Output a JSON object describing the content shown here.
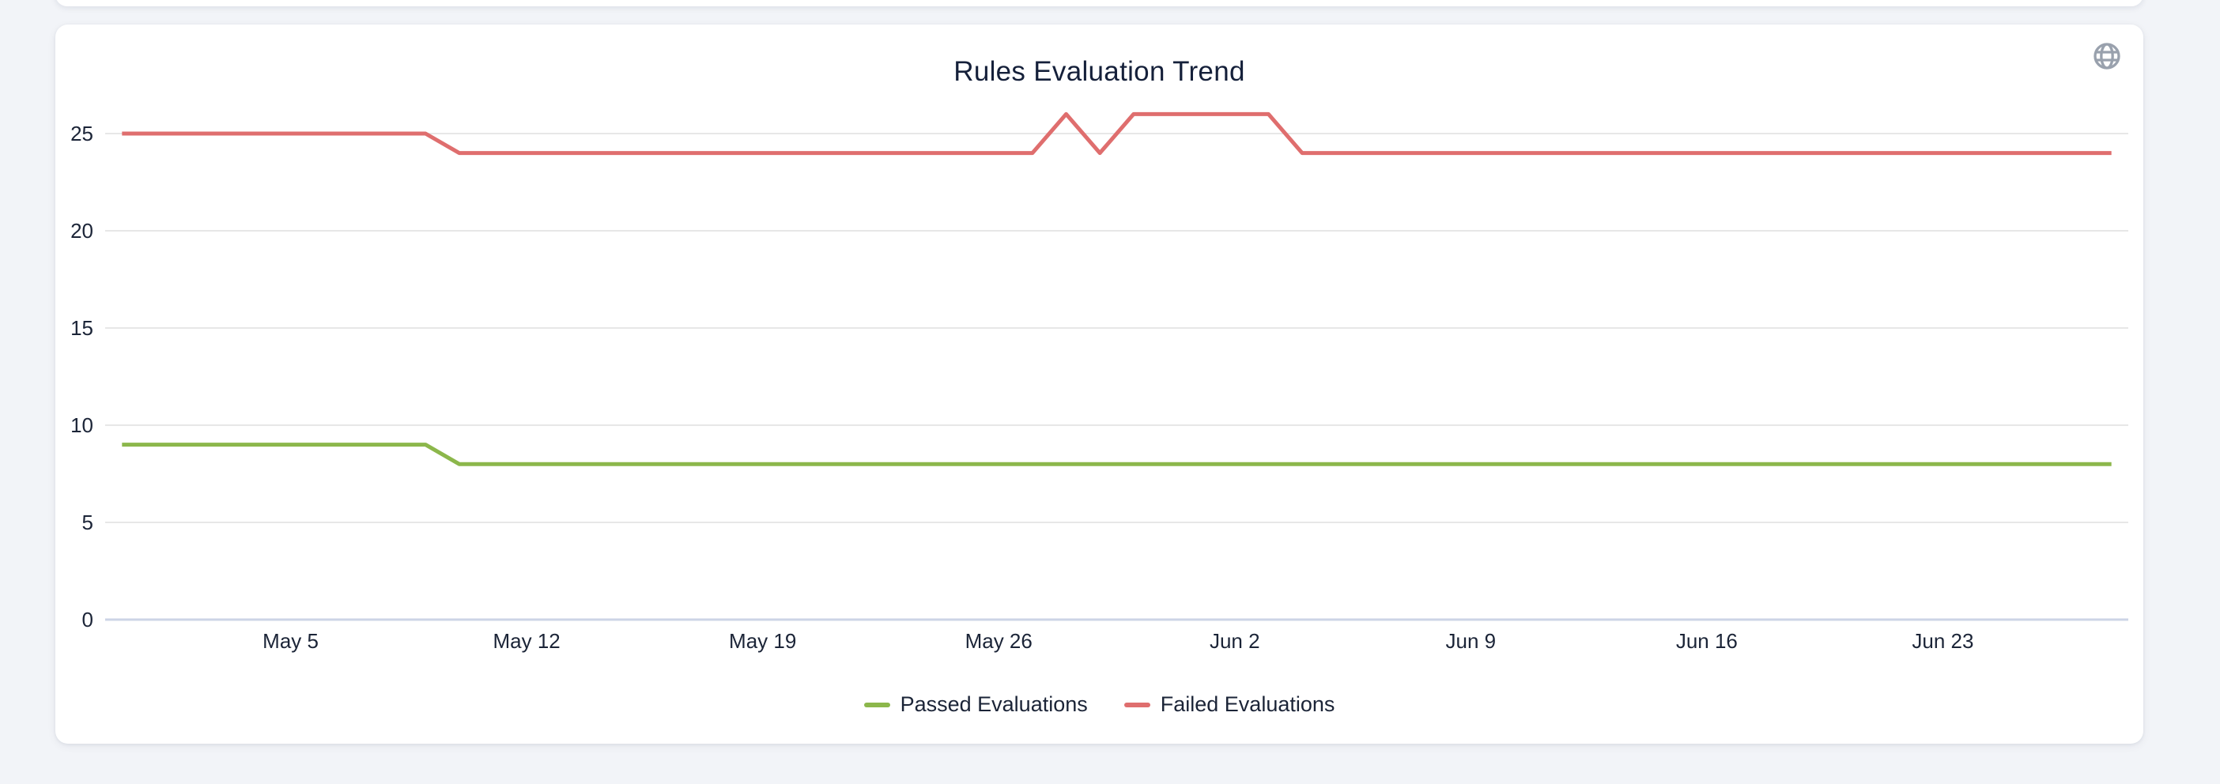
{
  "icons": {
    "top_right": "globe-icon"
  },
  "chart_data": {
    "type": "line",
    "title": "Rules Evaluation Trend",
    "xlabel": "",
    "ylabel": "",
    "ylim": [
      0,
      27
    ],
    "grid": true,
    "legend_position": "bottom",
    "yticks": [
      0,
      5,
      10,
      15,
      20,
      25
    ],
    "xtick_labels": [
      "May 5",
      "May 12",
      "May 19",
      "May 26",
      "Jun 2",
      "Jun 9",
      "Jun 16",
      "Jun 23"
    ],
    "categories": [
      "Apr 30",
      "May 1",
      "May 2",
      "May 3",
      "May 4",
      "May 5",
      "May 6",
      "May 7",
      "May 8",
      "May 9",
      "May 10",
      "May 11",
      "May 12",
      "May 13",
      "May 14",
      "May 15",
      "May 16",
      "May 17",
      "May 18",
      "May 19",
      "May 20",
      "May 21",
      "May 22",
      "May 23",
      "May 24",
      "May 25",
      "May 26",
      "May 27",
      "May 28",
      "May 29",
      "May 30",
      "May 31",
      "Jun 1",
      "Jun 2",
      "Jun 3",
      "Jun 4",
      "Jun 5",
      "Jun 6",
      "Jun 7",
      "Jun 8",
      "Jun 9",
      "Jun 10",
      "Jun 11",
      "Jun 12",
      "Jun 13",
      "Jun 14",
      "Jun 15",
      "Jun 16",
      "Jun 17",
      "Jun 18",
      "Jun 19",
      "Jun 20",
      "Jun 21",
      "Jun 22",
      "Jun 23",
      "Jun 24",
      "Jun 25",
      "Jun 26",
      "Jun 27",
      "Jun 28"
    ],
    "series": [
      {
        "name": "Passed Evaluations",
        "color": "#8cb74b",
        "values": [
          9,
          9,
          9,
          9,
          9,
          9,
          9,
          9,
          9,
          9,
          8,
          8,
          8,
          8,
          8,
          8,
          8,
          8,
          8,
          8,
          8,
          8,
          8,
          8,
          8,
          8,
          8,
          8,
          8,
          8,
          8,
          8,
          8,
          8,
          8,
          8,
          8,
          8,
          8,
          8,
          8,
          8,
          8,
          8,
          8,
          8,
          8,
          8,
          8,
          8,
          8,
          8,
          8,
          8,
          8,
          8,
          8,
          8,
          8,
          8
        ]
      },
      {
        "name": "Failed Evaluations",
        "color": "#df6e6e",
        "values": [
          25,
          25,
          25,
          25,
          25,
          25,
          25,
          25,
          25,
          25,
          24,
          24,
          24,
          24,
          24,
          24,
          24,
          24,
          24,
          24,
          24,
          24,
          24,
          24,
          24,
          24,
          24,
          24,
          26,
          24,
          26,
          26,
          26,
          26,
          26,
          24,
          24,
          24,
          24,
          24,
          24,
          24,
          24,
          24,
          24,
          24,
          24,
          24,
          24,
          24,
          24,
          24,
          24,
          24,
          24,
          24,
          24,
          24,
          24,
          24
        ]
      }
    ]
  }
}
